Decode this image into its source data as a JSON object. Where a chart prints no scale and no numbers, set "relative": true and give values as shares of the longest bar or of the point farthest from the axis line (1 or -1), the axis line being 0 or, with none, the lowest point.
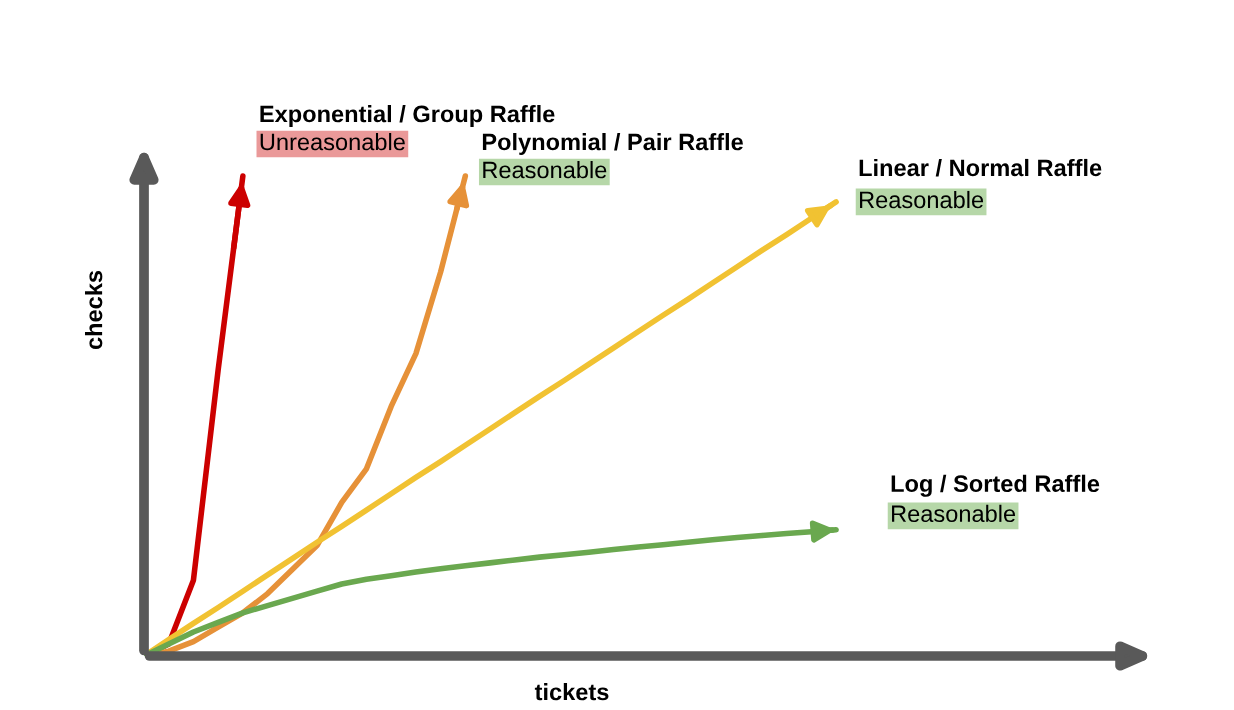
{
  "chart_data": {
    "type": "line",
    "relative": true,
    "xlabel": "tickets",
    "ylabel": "checks",
    "marker": "none",
    "line_style": "solid",
    "categories": [
      null,
      null,
      null,
      null,
      null,
      null,
      null,
      null,
      null,
      null,
      null,
      null,
      null,
      null,
      null,
      null,
      null,
      null,
      null,
      null,
      null,
      null,
      null,
      null,
      null,
      null,
      null,
      null,
      null
    ],
    "series": [
      {
        "name": "Exponential / Group Raffle",
        "color": "#cc0000",
        "values": [
          0,
          0.025,
          0.158,
          0.596,
          1,
          null,
          null,
          null,
          null,
          null,
          null,
          null,
          null,
          null,
          null,
          null,
          null,
          null,
          null,
          null,
          null,
          null,
          null,
          null,
          null,
          null,
          null,
          null,
          null
        ]
      },
      {
        "name": "Polynomial / Pair Raffle",
        "color": "#e69138",
        "values": [
          0,
          0.01,
          0.03,
          0.06,
          0.09,
          0.13,
          0.18,
          0.23,
          0.32,
          0.39,
          0.52,
          0.63,
          0.8,
          1,
          null,
          null,
          null,
          null,
          null,
          null,
          null,
          null,
          null,
          null,
          null,
          null,
          null,
          null,
          null
        ]
      },
      {
        "name": "Linear / Normal Raffle",
        "color": "#f1c232",
        "values": [
          0,
          0.034,
          0.068,
          0.101,
          0.135,
          0.169,
          0.203,
          0.237,
          0.27,
          0.304,
          0.338,
          0.372,
          0.405,
          0.439,
          0.473,
          0.507,
          0.541,
          0.574,
          0.608,
          0.642,
          0.676,
          0.71,
          0.743,
          0.777,
          0.811,
          0.845,
          0.878,
          0.912,
          0.946
        ]
      },
      {
        "name": "Log / Sorted Raffle",
        "color": "#6aa84f",
        "values": [
          0,
          0.025,
          0.05,
          0.07,
          0.09,
          0.105,
          0.12,
          0.135,
          0.15,
          0.16,
          0.167,
          0.175,
          0.182,
          0.188,
          0.194,
          0.2,
          0.206,
          0.211,
          0.216,
          0.222,
          0.227,
          0.232,
          0.237,
          0.242,
          0.247,
          0.251,
          0.255,
          0.259,
          0.263
        ]
      }
    ],
    "annotations": [
      "Unreasonable",
      "Reasonable",
      "Reasonable",
      "Reasonable"
    ]
  }
}
